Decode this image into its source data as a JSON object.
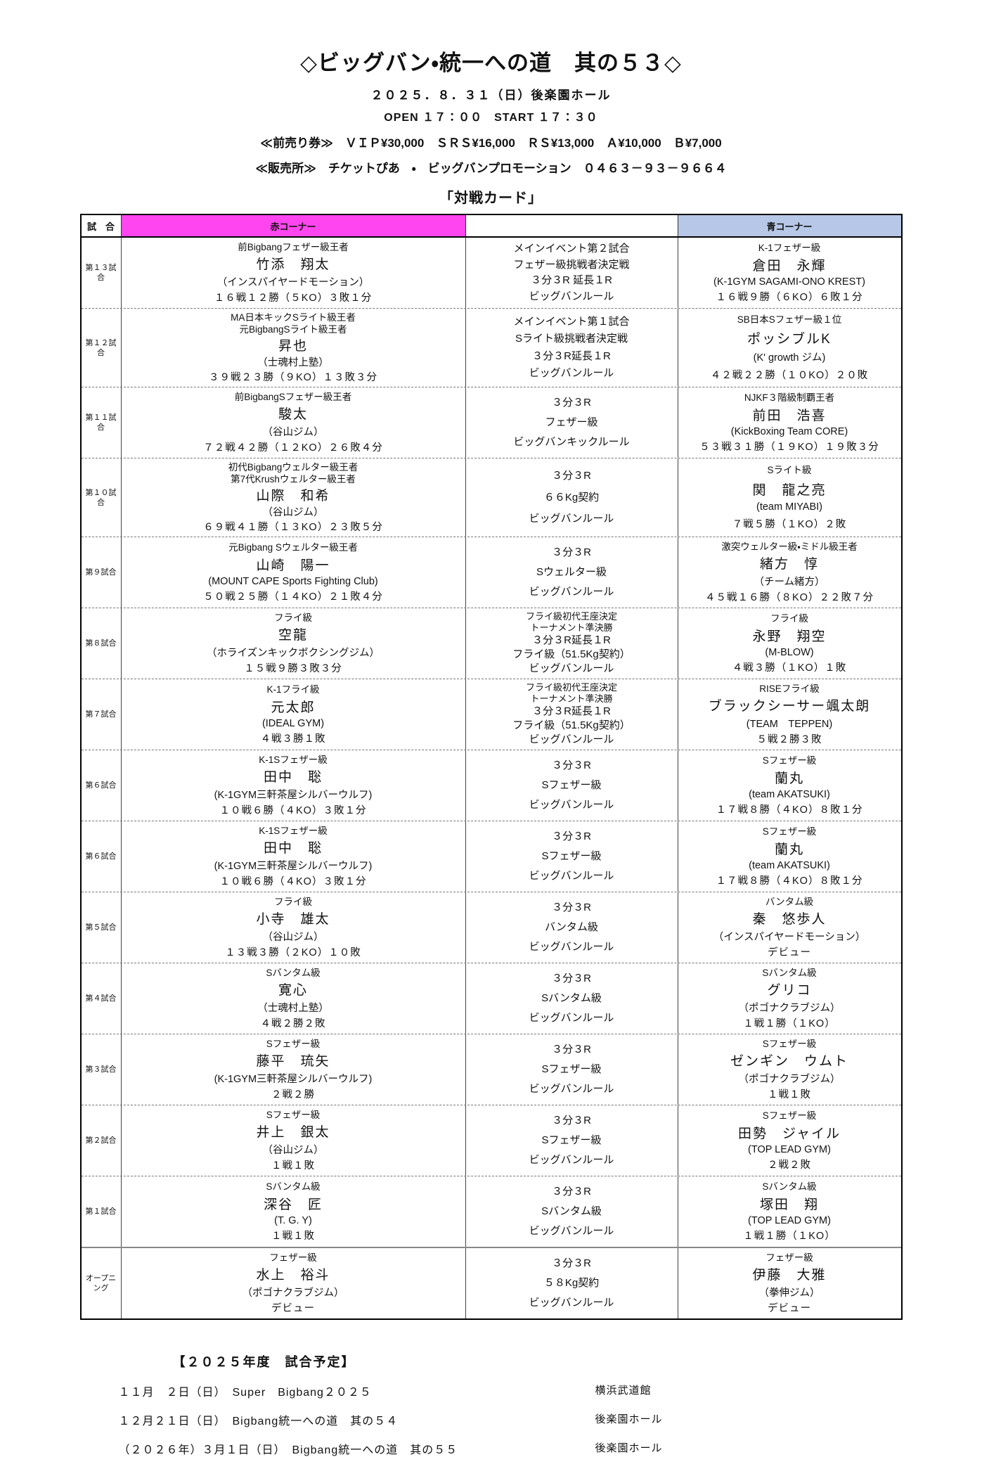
{
  "page": {
    "title": "◇ビッグバン・統一への道　其の５３◇",
    "date_line": "２０２５．８．３１（日）後楽園ホール",
    "open_line": "OPEN １７：００　START １７：３０",
    "ticket_line": "≪前売り券≫　ＶＩＰ¥30,000　ＳＲＳ¥16,000　ＲＳ¥13,000　Ａ¥10,000　Ｂ¥7,000",
    "sales_line": "≪販売所≫　チケットぴあ　・　ビッグバンプロモーション　０４６３－９３－９６６４",
    "card_title": "「対戦カード」"
  },
  "colors": {
    "red_header_bg": "#ff45ef",
    "blue_header_bg": "#b7c7e7"
  },
  "table": {
    "col_headers": {
      "match": "試　合",
      "red": "赤コーナー",
      "blue": "青コーナー"
    },
    "rows": [
      {
        "match": "第１３試合",
        "red": {
          "headers": [
            "前Bigbangフェザー級王者"
          ],
          "name": "竹添　翔太",
          "gym": "（インスパイヤードモーション）",
          "record": "１６戦１２勝（５KO）３敗１分"
        },
        "center": {
          "top": [],
          "lines": [
            "メインイベント第２試合",
            "フェザー級挑戦者決定戦",
            "３分３R 延長１R",
            "ビッグバンルール"
          ]
        },
        "blue": {
          "headers": [
            "K-1フェザー級"
          ],
          "name": "倉田　永輝",
          "gym": "(K-1GYM SAGAMI-ONO KREST)",
          "record": "１６戦９勝（６KO）６敗１分"
        }
      },
      {
        "match": "第１２試合",
        "red": {
          "headers": [
            "MA日本キックSライト級王者",
            "元BigbangSライト級王者"
          ],
          "name": "昇也",
          "gym": "（士魂村上塾）",
          "record": "３９戦２３勝（９KO）１３敗３分"
        },
        "center": {
          "top": [],
          "lines": [
            "メインイベント第１試合",
            "Sライト級挑戦者決定戦",
            "３分３R延長１R",
            "ビッグバンルール"
          ]
        },
        "blue": {
          "headers": [
            "SB日本Sフェザー級１位"
          ],
          "name": "ポッシブルK",
          "gym": "(K' growth ジム)",
          "record": "４２戦２２勝（１０KO）２０敗"
        }
      },
      {
        "match": "第１１試合",
        "red": {
          "headers": [
            "前BigbangSフェザー級王者"
          ],
          "name": "駿太",
          "gym": "（谷山ジム）",
          "record": "７２戦４２勝（１２KO）２６敗４分"
        },
        "center": {
          "top": [],
          "lines": [
            "３分３R",
            "フェザー級",
            "ビッグバンキックルール"
          ]
        },
        "blue": {
          "headers": [
            "NJKF３階級制覇王者"
          ],
          "name": "前田　浩喜",
          "gym": "(KickBoxing Team CORE)",
          "record": "５３戦３１勝（１９KO）１９敗３分"
        }
      },
      {
        "match": "第１０試合",
        "red": {
          "headers": [
            "初代Bigbangウェルター級王者",
            "第7代Krushウェルター級王者"
          ],
          "name": "山際　和希",
          "gym": "（谷山ジム）",
          "record": "６９戦４１勝（１３KO）２３敗５分"
        },
        "center": {
          "top": [],
          "lines": [
            "３分３R",
            "６６Kg契約",
            "ビッグバンルール"
          ]
        },
        "blue": {
          "headers": [
            "Sライト級"
          ],
          "name": "関　龍之亮",
          "gym": "(team MIYABI)",
          "record": "７戦５勝（１KO）２敗"
        }
      },
      {
        "match": "第９試合",
        "red": {
          "headers": [
            "元Bigbang Sウェルター級王者"
          ],
          "name": "山崎　陽一",
          "gym": "(MOUNT CAPE Sports Fighting Club)",
          "record": "５０戦２５勝（１４KO）２１敗４分"
        },
        "center": {
          "top": [],
          "lines": [
            "３分３R",
            "Sウェルター級",
            "ビッグバンルール"
          ]
        },
        "blue": {
          "headers": [
            "激突ウェルター級・ミドル級王者"
          ],
          "name": "緒方　惇",
          "gym": "（チーム緒方）",
          "record": "４５戦１６勝（８KO）２２敗７分"
        }
      },
      {
        "match": "第８試合",
        "red": {
          "headers": [
            "フライ級"
          ],
          "name": "空龍",
          "gym": "（ホライズンキックボクシングジム）",
          "record": "１５戦９勝３敗３分"
        },
        "center": {
          "top": [
            "フライ級初代王座決定",
            "トーナメント準決勝"
          ],
          "lines": [
            "３分３R延長１R",
            "フライ級（51.5Kg契約）",
            "ビッグバンルール"
          ]
        },
        "blue": {
          "headers": [
            "フライ級"
          ],
          "name": "永野　翔空",
          "gym": "(M-BLOW)",
          "record": "４戦３勝（１KO）１敗"
        }
      },
      {
        "match": "第７試合",
        "red": {
          "headers": [
            "K-1フライ級"
          ],
          "name": "元太郎",
          "gym": "(IDEAL GYM)",
          "record": "４戦３勝１敗"
        },
        "center": {
          "top": [
            "フライ級初代王座決定",
            "トーナメント準決勝"
          ],
          "lines": [
            "３分３R延長１R",
            "フライ級（51.5Kg契約）",
            "ビッグバンルール"
          ]
        },
        "blue": {
          "headers": [
            "RISEフライ級"
          ],
          "name": "ブラックシーサー颯太朗",
          "gym": "(TEAM　TEPPEN)",
          "record": "５戦２勝３敗"
        }
      },
      {
        "match": "第６試合",
        "red": {
          "headers": [
            "K-1Sフェザー級"
          ],
          "name": "田中　聡",
          "gym": "(K-1GYM三軒茶屋シルバーウルフ)",
          "record": "１０戦６勝（４KO）３敗１分"
        },
        "center": {
          "top": [],
          "lines": [
            "３分３R",
            "Sフェザー級",
            "ビッグバンルール"
          ]
        },
        "blue": {
          "headers": [
            "Sフェザー級"
          ],
          "name": "蘭丸",
          "gym": "(team AKATSUKI)",
          "record": "１７戦８勝（４KO）８敗１分"
        }
      },
      {
        "match": "第６試合",
        "red": {
          "headers": [
            "K-1Sフェザー級"
          ],
          "name": "田中　聡",
          "gym": "(K-1GYM三軒茶屋シルバーウルフ)",
          "record": "１０戦６勝（４KO）３敗１分"
        },
        "center": {
          "top": [],
          "lines": [
            "３分３R",
            "Sフェザー級",
            "ビッグバンルール"
          ]
        },
        "blue": {
          "headers": [
            "Sフェザー級"
          ],
          "name": "蘭丸",
          "gym": "(team AKATSUKI)",
          "record": "１７戦８勝（４KO）８敗１分"
        }
      },
      {
        "match": "第５試合",
        "red": {
          "headers": [
            "フライ級"
          ],
          "name": "小寺　雄太",
          "gym": "（谷山ジム）",
          "record": "１３戦３勝（２KO）１０敗"
        },
        "center": {
          "top": [],
          "lines": [
            "３分３R",
            "バンタム級",
            "ビッグバンルール"
          ]
        },
        "blue": {
          "headers": [
            "バンタム級"
          ],
          "name": "秦　悠歩人",
          "gym": "（インスパイヤードモーション）",
          "record": "デビュー"
        }
      },
      {
        "match": "第４試合",
        "red": {
          "headers": [
            "Sバンタム級"
          ],
          "name": "寛心",
          "gym": "（士魂村上塾）",
          "record": "４戦２勝２敗"
        },
        "center": {
          "top": [],
          "lines": [
            "３分３R",
            "Sバンタム級",
            "ビッグバンルール"
          ]
        },
        "blue": {
          "headers": [
            "Sバンタム級"
          ],
          "name": "グリコ",
          "gym": "（ポゴナクラブジム）",
          "record": "１戦１勝（１KO）"
        }
      },
      {
        "match": "第３試合",
        "red": {
          "headers": [
            "Sフェザー級"
          ],
          "name": "藤平　琉矢",
          "gym": "(K-1GYM三軒茶屋シルバーウルフ)",
          "record": "２戦２勝"
        },
        "center": {
          "top": [],
          "lines": [
            "３分３R",
            "Sフェザー級",
            "ビッグバンルール"
          ]
        },
        "blue": {
          "headers": [
            "Sフェザー級"
          ],
          "name": "ゼンギン　ウムト",
          "gym": "（ポゴナクラブジム）",
          "record": "１戦１敗"
        }
      },
      {
        "match": "第２試合",
        "red": {
          "headers": [
            "Sフェザー級"
          ],
          "name": "井上　銀太",
          "gym": "（谷山ジム）",
          "record": "１戦１敗"
        },
        "center": {
          "top": [],
          "lines": [
            "３分３R",
            "Sフェザー級",
            "ビッグバンルール"
          ]
        },
        "blue": {
          "headers": [
            "Sフェザー級"
          ],
          "name": "田勢　ジャイル",
          "gym": "(TOP LEAD GYM)",
          "record": "２戦２敗"
        }
      },
      {
        "match": "第１試合",
        "red": {
          "headers": [
            "Sバンタム級"
          ],
          "name": "深谷　匠",
          "gym": "(T. G. Y)",
          "record": "１戦１敗"
        },
        "center": {
          "top": [],
          "lines": [
            "３分３R",
            "Sバンタム級",
            "ビッグバンルール"
          ]
        },
        "blue": {
          "headers": [
            "Sバンタム級"
          ],
          "name": "塚田　翔",
          "gym": "(TOP LEAD GYM)",
          "record": "１戦１勝（１KO）"
        }
      },
      {
        "match": "オープニング",
        "red": {
          "headers": [
            "フェザー級"
          ],
          "name": "水上　裕斗",
          "gym": "（ポゴナクラブジム）",
          "record": "デビュー"
        },
        "center": {
          "top": [],
          "lines": [
            "３分３R",
            "５８Kg契約",
            "ビッグバンルール"
          ]
        },
        "blue": {
          "headers": [
            "フェザー級"
          ],
          "name": "伊藤　大雅",
          "gym": "（拳伸ジム）",
          "record": "デビュー"
        }
      }
    ]
  },
  "footer": {
    "title": "【２０２５年度　試合予定】",
    "schedule": [
      {
        "date_event": "１１月　２日（日）　Super　Bigbang２０２５",
        "venue": "横浜武道館"
      },
      {
        "date_event": "１２月２１日（日）　Bigbang統一への道　其の５４",
        "venue": "後楽園ホール"
      },
      {
        "date_event": "（２０２６年）３月１日（日）　Bigbang統一への道　其の５５",
        "venue": "後楽園ホール"
      }
    ]
  }
}
